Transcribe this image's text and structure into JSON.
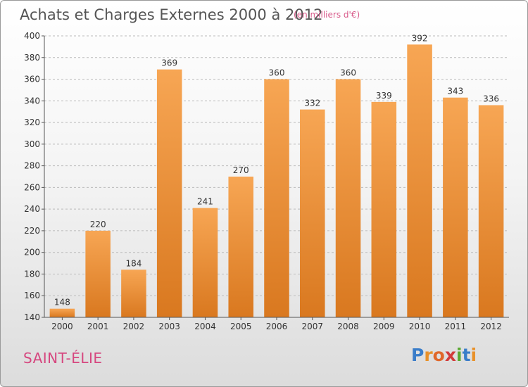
{
  "header": {
    "title": "Achats et Charges Externes 2000 à 2012",
    "subtitle": "(en milliers d'€)"
  },
  "footer": {
    "commune": "SAINT-ÉLIE",
    "logo_letters": [
      "P",
      "r",
      "o",
      "x",
      "i",
      "t",
      "i"
    ],
    "logo_colors": [
      "#3a7dc9",
      "#e8912a",
      "#e0672a",
      "#d23b3b",
      "#5aa832",
      "#3a7dc9",
      "#e8912a"
    ]
  },
  "colors": {
    "bar_top": "#f7a654",
    "bar_bottom": "#d9781f",
    "grid": "#bbbbbb",
    "axis_text": "#333333"
  },
  "chart_data": {
    "type": "bar",
    "title": "Achats et Charges Externes 2000 à 2012",
    "subtitle": "(en milliers d'€)",
    "xlabel": "",
    "ylabel": "",
    "categories": [
      "2000",
      "2001",
      "2002",
      "2003",
      "2004",
      "2005",
      "2006",
      "2007",
      "2008",
      "2009",
      "2010",
      "2011",
      "2012"
    ],
    "values": [
      148,
      220,
      184,
      369,
      241,
      270,
      360,
      332,
      360,
      339,
      392,
      343,
      336
    ],
    "ylim": [
      140,
      400
    ],
    "yticks": [
      140,
      160,
      180,
      200,
      220,
      240,
      260,
      280,
      300,
      320,
      340,
      360,
      380,
      400
    ],
    "grid": true
  }
}
